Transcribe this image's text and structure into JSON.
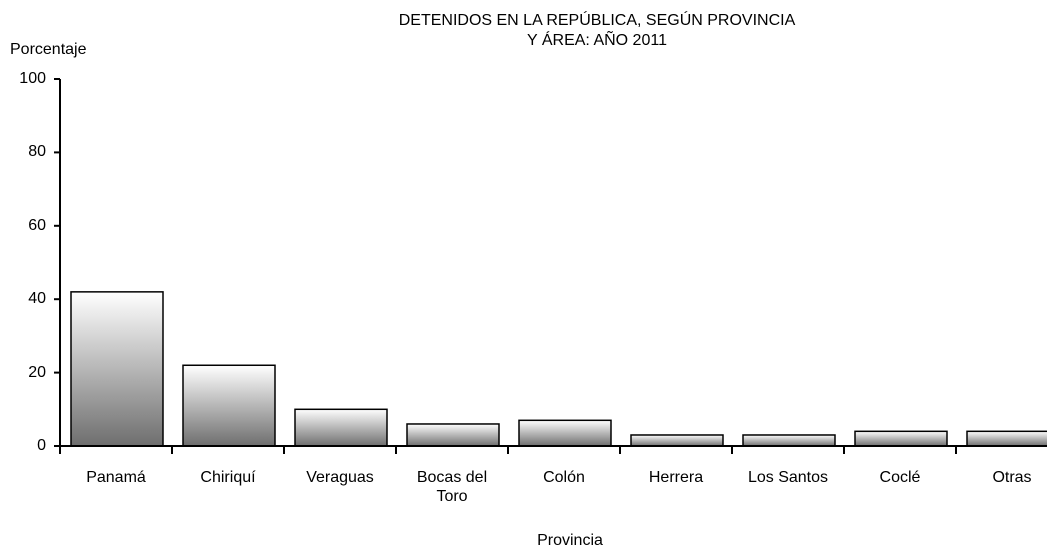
{
  "chart_data": {
    "type": "bar",
    "title": [
      "DETENIDOS EN LA REPÚBLICA, SEGÚN PROVINCIA",
      "Y ÁREA: AÑO 2011"
    ],
    "y_label": "Porcentaje",
    "x_label": "Provincia",
    "categories": [
      "Panamá",
      "Chiriquí",
      "Veraguas",
      "Bocas del Toro",
      "Colón",
      "Herrera",
      "Los Santos",
      "Coclé",
      "Otras"
    ],
    "values": [
      42,
      22,
      10,
      6,
      7,
      3,
      3,
      4,
      4
    ],
    "color": "#6e6e6e",
    "ylim": [
      0,
      100
    ],
    "yticks": [
      0,
      20,
      40,
      60,
      80,
      100
    ],
    "grid": false
  }
}
